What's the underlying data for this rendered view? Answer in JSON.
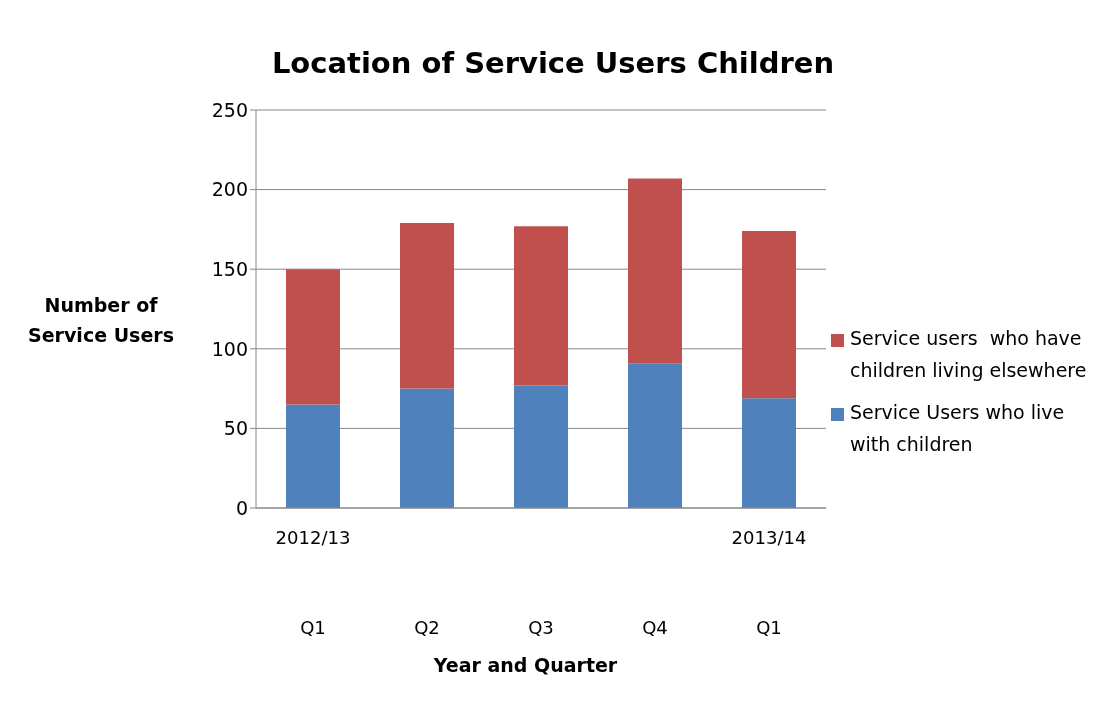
{
  "chart_data": {
    "type": "bar",
    "title": "Location of Service Users Children",
    "xlabel": "Year and Quarter",
    "ylabel": "Number of Service Users",
    "categories": [
      "Q1",
      "Q2",
      "Q3",
      "Q4",
      "Q1"
    ],
    "annotations": [
      "2012/13",
      "2013/14"
    ],
    "series": [
      {
        "name": "Service Users who live with children",
        "color": "#4f81bd",
        "values": [
          65,
          75,
          77,
          91,
          69
        ]
      },
      {
        "name": "Service users  who have children living elsewhere",
        "color": "#c0504d",
        "values": [
          85,
          104,
          100,
          116,
          105
        ]
      }
    ],
    "stacked": true,
    "ylim": [
      0,
      250
    ],
    "yticks": [
      0,
      50,
      100,
      150,
      200,
      250
    ],
    "grid": "y",
    "legend": "right"
  }
}
